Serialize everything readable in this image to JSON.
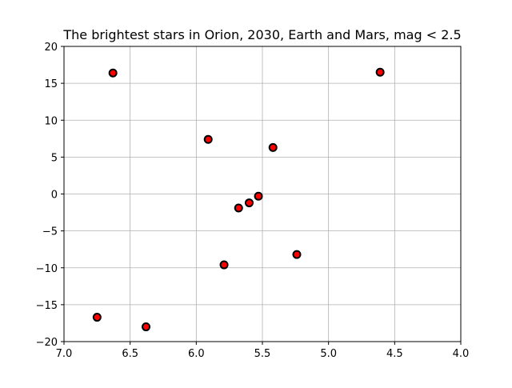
{
  "chart_data": {
    "type": "scatter",
    "title": "The brightest stars in Orion, 2030, Earth and Mars, mag < 2.5",
    "xlabel": "",
    "ylabel": "",
    "xlim": [
      7.0,
      4.0
    ],
    "ylim": [
      -20,
      20
    ],
    "x_inverted": true,
    "grid": true,
    "x_ticks": [
      7.0,
      6.5,
      6.0,
      5.5,
      5.0,
      4.5,
      4.0
    ],
    "x_tick_labels": [
      "7.0",
      "6.5",
      "6.0",
      "5.5",
      "5.0",
      "4.5",
      "4.0"
    ],
    "y_ticks": [
      20,
      15,
      10,
      5,
      0,
      -5,
      -10,
      -15,
      -20
    ],
    "y_tick_labels": [
      "20",
      "15",
      "10",
      "5",
      "0",
      "−5",
      "−10",
      "−15",
      "−20"
    ],
    "marker": {
      "fill": "#ff0000",
      "edge": "#000000"
    },
    "grid_color": "#b0b0b0",
    "series": [
      {
        "x": [
          6.63,
          4.61,
          5.91,
          5.42,
          5.53,
          5.6,
          5.68,
          5.79,
          5.24,
          6.75,
          6.38
        ],
        "y": [
          16.4,
          16.5,
          7.4,
          6.3,
          -0.3,
          -1.2,
          -1.9,
          -9.6,
          -8.2,
          -16.7,
          -18.0
        ]
      }
    ]
  }
}
